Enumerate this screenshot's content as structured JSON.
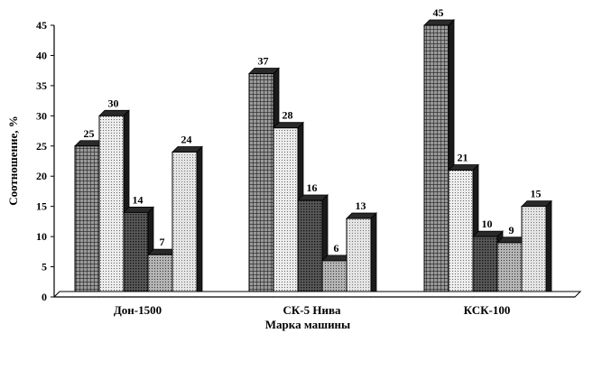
{
  "chart_data": {
    "type": "bar",
    "title": "",
    "xlabel": "Марка машины",
    "ylabel": "Соотношение, %",
    "ylim": [
      0,
      45
    ],
    "yticks": [
      "0",
      "5",
      "10",
      "15",
      "20",
      "25",
      "30",
      "35",
      "40",
      "45"
    ],
    "grid": false,
    "legend": "none",
    "categories": [
      "Дон-1500",
      "СК-5 Нива",
      "КСК-100"
    ],
    "series": [
      {
        "values": [
          25,
          37,
          45
        ]
      },
      {
        "values": [
          30,
          28,
          21
        ]
      },
      {
        "values": [
          14,
          16,
          10
        ]
      },
      {
        "values": [
          7,
          6,
          9
        ]
      },
      {
        "values": [
          24,
          13,
          15
        ]
      }
    ],
    "data_labels": [
      [
        "25",
        "37",
        "45"
      ],
      [
        "30",
        "28",
        "21"
      ],
      [
        "14",
        "16",
        "10"
      ],
      [
        "7",
        "6",
        "9"
      ],
      [
        "24",
        "13",
        "15"
      ]
    ],
    "series_fills": [
      "#5a5a5a",
      "#d8d8d8",
      "#3c3c3c",
      "#8c8c8c",
      "#cfcfcf"
    ]
  }
}
